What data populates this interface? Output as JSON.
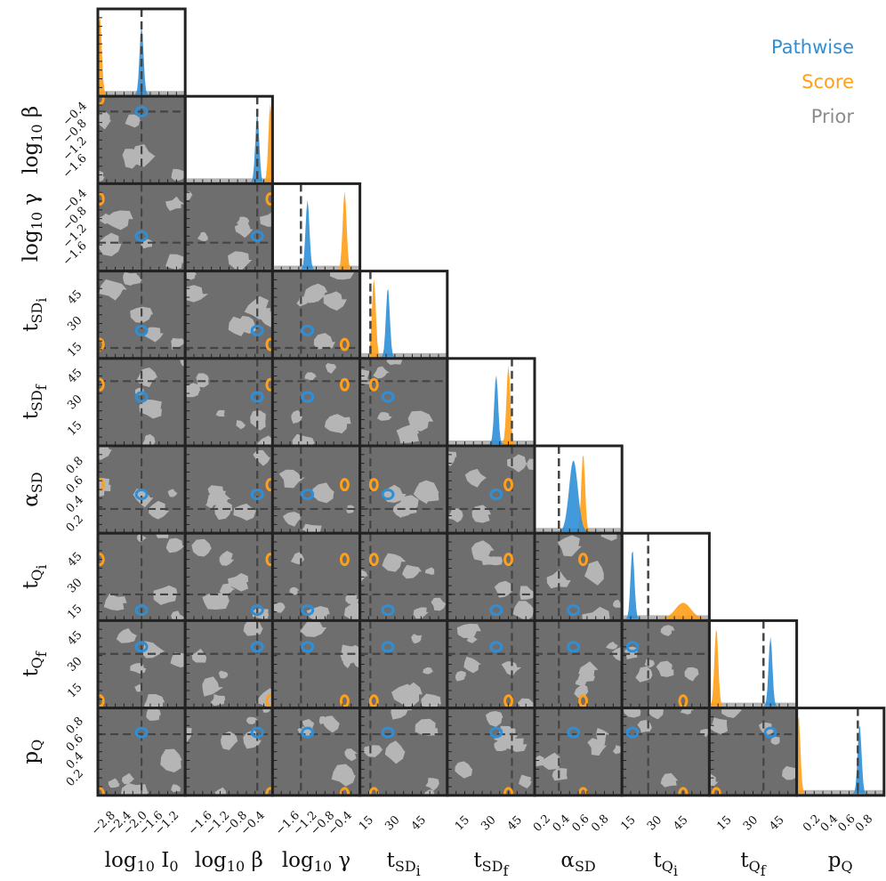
{
  "chart_data": {
    "type": "corner",
    "legend": {
      "position": "top-right",
      "items": [
        {
          "name": "Pathwise",
          "color": "#2f8fd6"
        },
        {
          "name": "Score",
          "color": "#ff9f1a"
        },
        {
          "name": "Prior",
          "color": "#8c8c8c"
        }
      ]
    },
    "colors": {
      "pathwise": "#2f8fd6",
      "score": "#ff9f1a",
      "prior": "#6e6e6e",
      "prior_light": "#b5b5b5",
      "truth": "#444444",
      "frame": "#222222"
    },
    "parameters": [
      {
        "id": "log10_I0",
        "label_main": "log",
        "label_sub": "10",
        "label_tail": " I",
        "label_sub2": "0",
        "range": [
          -3.0,
          -0.8
        ],
        "ticks": [
          "−2.8",
          "−2.4",
          "−2.0",
          "−1.6",
          "−1.2"
        ],
        "tick_values": [
          -2.8,
          -2.4,
          -2.0,
          -1.6,
          -1.2
        ],
        "truth": -1.9,
        "pathwise_mean": -1.9,
        "score_mean": -2.95
      },
      {
        "id": "log10_beta",
        "label_main": "log",
        "label_sub": "10",
        "label_tail": " β",
        "label_sub2": "",
        "range": [
          -2.0,
          0.0
        ],
        "ticks": [
          "−1.6",
          "−1.2",
          "−0.8",
          "−0.4"
        ],
        "tick_values": [
          -1.6,
          -1.2,
          -0.8,
          -0.4
        ],
        "truth": -0.35,
        "pathwise_mean": -0.35,
        "score_mean": -0.05
      },
      {
        "id": "log10_gamma",
        "label_main": "log",
        "label_sub": "10",
        "label_tail": " γ",
        "label_sub2": "",
        "range": [
          -2.0,
          0.0
        ],
        "ticks": [
          "−1.6",
          "−1.2",
          "−0.8",
          "−0.4"
        ],
        "tick_values": [
          -1.6,
          -1.2,
          -0.8,
          -0.4
        ],
        "truth": -1.35,
        "pathwise_mean": -1.2,
        "score_mean": -0.35
      },
      {
        "id": "t_SDi",
        "label_main": "t",
        "label_sub": "SD",
        "label_tail": "",
        "label_sub2": "i",
        "range": [
          10,
          60
        ],
        "ticks": [
          "15",
          "30",
          "45"
        ],
        "tick_values": [
          15,
          30,
          45
        ],
        "truth": 16,
        "pathwise_mean": 26,
        "score_mean": 18
      },
      {
        "id": "t_SDf",
        "label_main": "t",
        "label_sub": "SD",
        "label_tail": "",
        "label_sub2": "f",
        "range": [
          5,
          55
        ],
        "ticks": [
          "15",
          "30",
          "45"
        ],
        "tick_values": [
          15,
          30,
          45
        ],
        "truth": 42,
        "pathwise_mean": 33,
        "score_mean": 40
      },
      {
        "id": "alpha_SD",
        "label_main": "α",
        "label_sub": "SD",
        "label_tail": "",
        "label_sub2": "",
        "range": [
          0.1,
          1.0
        ],
        "ticks": [
          "0.2",
          "0.4",
          "0.6",
          "0.8"
        ],
        "tick_values": [
          0.2,
          0.4,
          0.6,
          0.8
        ],
        "truth": 0.35,
        "pathwise_mean": 0.5,
        "score_mean": 0.6
      },
      {
        "id": "t_Qi",
        "label_main": "t",
        "label_sub": "Q",
        "label_tail": "",
        "label_sub2": "i",
        "range": [
          10,
          60
        ],
        "ticks": [
          "15",
          "30",
          "45"
        ],
        "tick_values": [
          15,
          30,
          45
        ],
        "truth": 25,
        "pathwise_mean": 16,
        "score_mean": 45
      },
      {
        "id": "t_Qf",
        "label_main": "t",
        "label_sub": "Q",
        "label_tail": "",
        "label_sub2": "f",
        "range": [
          5,
          55
        ],
        "ticks": [
          "15",
          "30",
          "45"
        ],
        "tick_values": [
          15,
          30,
          45
        ],
        "truth": 36,
        "pathwise_mean": 40,
        "score_mean": 9
      },
      {
        "id": "p_Q",
        "label_main": "p",
        "label_sub": "Q",
        "label_tail": "",
        "label_sub2": "",
        "range": [
          0.0,
          1.0
        ],
        "ticks": [
          "0.2",
          "0.4",
          "0.6",
          "0.8"
        ],
        "tick_values": [
          0.2,
          0.4,
          0.6,
          0.8
        ],
        "truth": 0.7,
        "pathwise_mean": 0.72,
        "score_mean": 0.02
      }
    ]
  }
}
